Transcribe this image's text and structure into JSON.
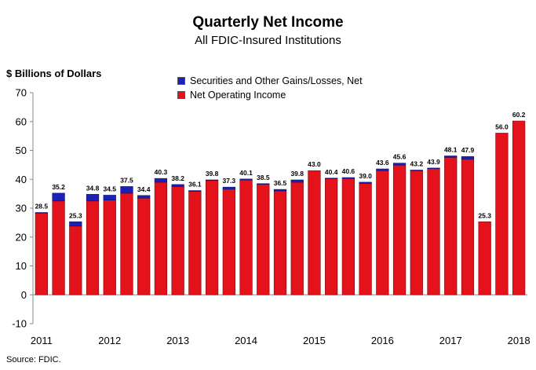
{
  "header": {
    "title": "Quarterly Net Income",
    "subtitle": "All FDIC-Insured Institutions"
  },
  "source": "Source:  FDIC.",
  "chart_data": {
    "type": "bar",
    "stacked": true,
    "title": "Quarterly Net Income",
    "subtitle": "All FDIC-Insured Institutions",
    "ylabel": "$ Billions of Dollars",
    "ylim": [
      -10,
      70
    ],
    "yticks": [
      -10,
      0,
      10,
      20,
      30,
      40,
      50,
      60,
      70
    ],
    "grid": false,
    "legend_position": "top-center",
    "colors": {
      "gains": "#1a22b8",
      "operating": "#e3121b"
    },
    "x_tick_labels": [
      "2011",
      "2012",
      "2013",
      "2014",
      "2015",
      "2016",
      "2017",
      "2018"
    ],
    "categories": [
      "2011Q1",
      "2011Q2",
      "2011Q3",
      "2011Q4",
      "2012Q1",
      "2012Q2",
      "2012Q3",
      "2012Q4",
      "2013Q1",
      "2013Q2",
      "2013Q3",
      "2013Q4",
      "2014Q1",
      "2014Q2",
      "2014Q3",
      "2014Q4",
      "2015Q1",
      "2015Q2",
      "2015Q3",
      "2015Q4",
      "2016Q1",
      "2016Q2",
      "2016Q3",
      "2016Q4",
      "2017Q1",
      "2017Q2",
      "2017Q3",
      "2017Q4",
      "2018Q1"
    ],
    "series": [
      {
        "name": "Net Operating Income",
        "values": [
          28.3,
          32.5,
          23.8,
          32.5,
          32.8,
          35.2,
          33.5,
          39.0,
          37.5,
          35.8,
          39.6,
          36.6,
          39.8,
          38.3,
          36.0,
          39.0,
          43.0,
          40.2,
          40.3,
          38.6,
          43.0,
          44.9,
          43.0,
          43.7,
          47.6,
          47.0,
          25.3,
          56.0,
          60.2
        ]
      },
      {
        "name": "Securities and Other Gains/Losses, Net",
        "values": [
          0.2,
          2.7,
          1.5,
          2.3,
          1.7,
          2.3,
          0.9,
          1.3,
          0.7,
          0.3,
          0.2,
          0.7,
          0.3,
          0.2,
          0.5,
          0.8,
          0.0,
          0.2,
          0.3,
          0.4,
          0.6,
          0.7,
          0.2,
          0.2,
          0.5,
          0.9,
          0.0,
          0.0,
          0.0
        ]
      }
    ],
    "data_labels": [
      "28.5",
      "35.2",
      "25.3",
      "34.8",
      "34.5",
      "37.5",
      "34.4",
      "40.3",
      "38.2",
      "36.1",
      "39.8",
      "37.3",
      "40.1",
      "38.5",
      "36.5",
      "39.8",
      "43.0",
      "40.4",
      "40.6",
      "39.0",
      "43.6",
      "45.6",
      "43.2",
      "43.9",
      "48.1",
      "47.9",
      "25.3",
      "56.0",
      "60.2"
    ]
  }
}
